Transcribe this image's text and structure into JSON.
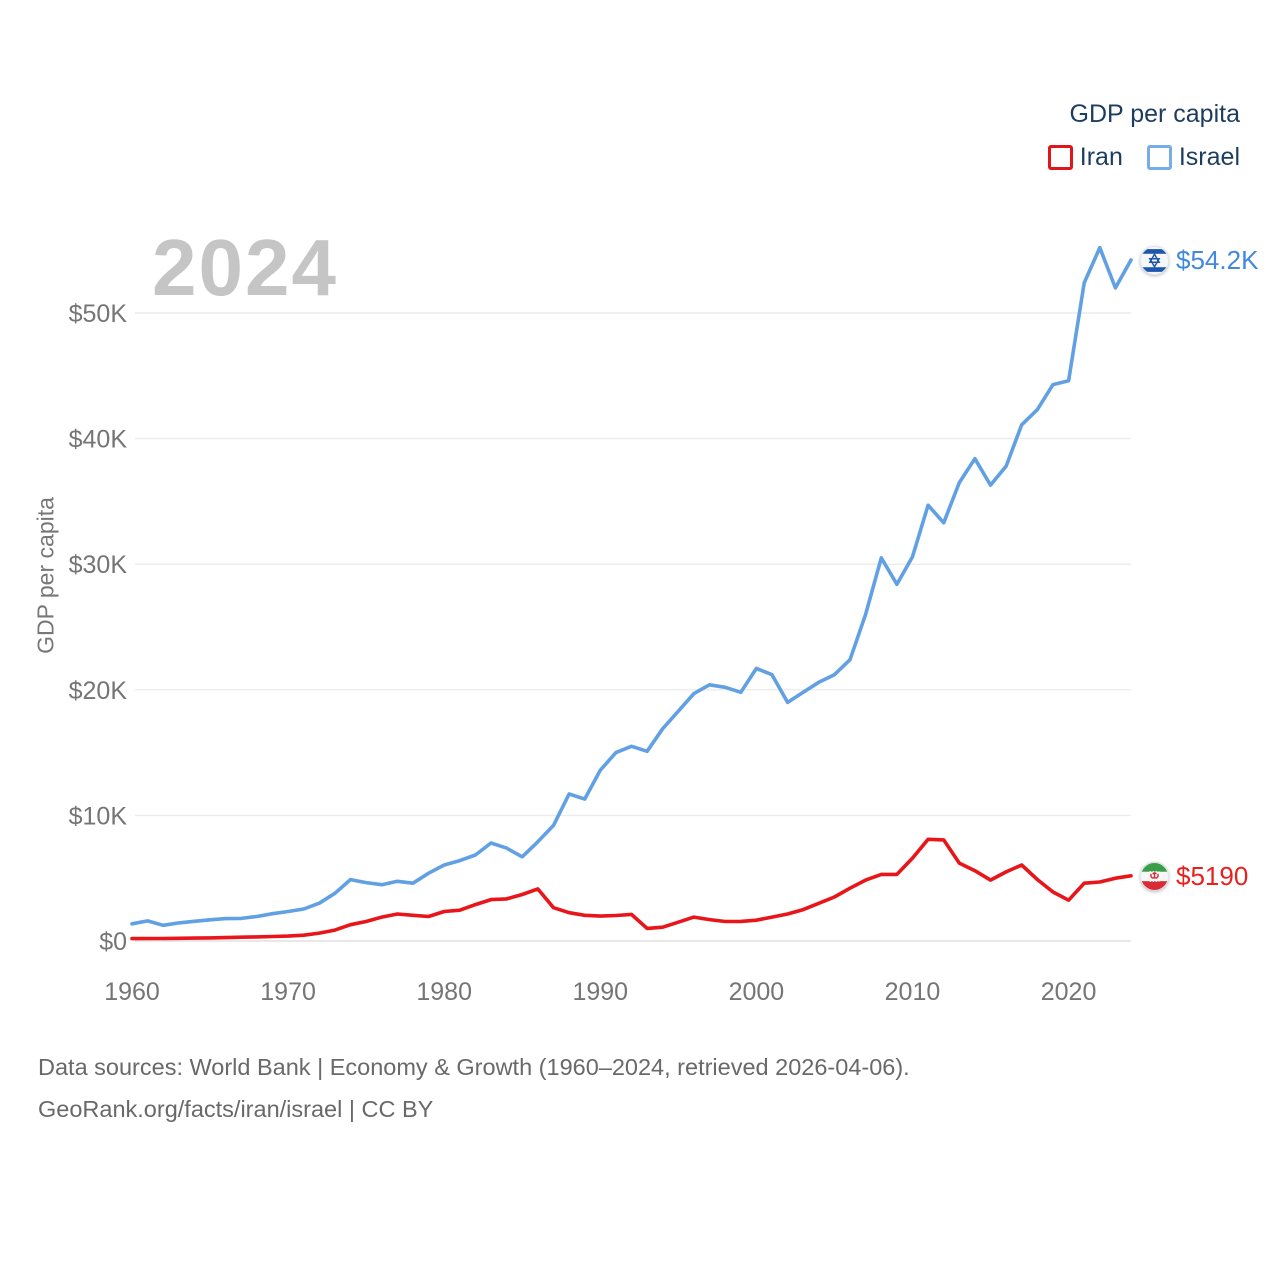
{
  "watermark_year": "2024",
  "legend": {
    "title": "GDP per capita",
    "items": [
      {
        "label": "Iran",
        "swatch_color": "#e0161a"
      },
      {
        "label": "Israel",
        "swatch_color": "#74ade8"
      }
    ]
  },
  "y_axis": {
    "title": "GDP per capita"
  },
  "end_labels": [
    {
      "series": "Israel",
      "text": "$54.2K",
      "color": "#4288dd",
      "value": 54220
    },
    {
      "series": "Iran",
      "text": "$5190",
      "color": "#e8201e",
      "value": 5190
    }
  ],
  "footer": {
    "line1": "Data sources: World Bank | Economy & Growth (1960–2024, retrieved 2026-04-06).",
    "line2": "GeoRank.org/facts/iran/israel | CC BY"
  },
  "chart_data": {
    "type": "line",
    "title": "GDP per capita",
    "xlabel": "",
    "ylabel": "GDP per capita",
    "x_range": [
      1960,
      2024
    ],
    "ylim": [
      0,
      55500
    ],
    "grid": "horizontal",
    "legend_position": "top-right",
    "x": [
      1960,
      1961,
      1962,
      1963,
      1964,
      1965,
      1966,
      1967,
      1968,
      1969,
      1970,
      1971,
      1972,
      1973,
      1974,
      1975,
      1976,
      1977,
      1978,
      1979,
      1980,
      1981,
      1982,
      1983,
      1984,
      1985,
      1986,
      1987,
      1988,
      1989,
      1990,
      1991,
      1992,
      1993,
      1994,
      1995,
      1996,
      1997,
      1998,
      1999,
      2000,
      2001,
      2002,
      2003,
      2004,
      2005,
      2006,
      2007,
      2008,
      2009,
      2010,
      2011,
      2012,
      2013,
      2014,
      2015,
      2016,
      2017,
      2018,
      2019,
      2020,
      2021,
      2022,
      2023,
      2024
    ],
    "series": [
      {
        "name": "Iran",
        "color": "#e8161b",
        "values": [
          190,
          200,
          200,
          215,
          230,
          250,
          270,
          300,
          330,
          360,
          390,
          460,
          630,
          870,
          1300,
          1550,
          1900,
          2150,
          2050,
          1950,
          2350,
          2450,
          2900,
          3300,
          3350,
          3700,
          4150,
          2650,
          2250,
          2050,
          1980,
          2030,
          2120,
          1000,
          1100,
          1500,
          1900,
          1700,
          1550,
          1560,
          1660,
          1900,
          2150,
          2500,
          3000,
          3500,
          4200,
          4850,
          5300,
          5300,
          6600,
          8100,
          8050,
          6200,
          5600,
          4850,
          5500,
          6050,
          4900,
          3900,
          3250,
          4600,
          4700,
          5000,
          5190
        ]
      },
      {
        "name": "Israel",
        "color": "#61a0e3",
        "values": [
          1370,
          1600,
          1250,
          1440,
          1570,
          1690,
          1780,
          1800,
          1950,
          2170,
          2350,
          2550,
          3010,
          3800,
          4890,
          4650,
          4480,
          4750,
          4600,
          5400,
          6050,
          6400,
          6850,
          7800,
          7400,
          6700,
          7900,
          9200,
          11700,
          11300,
          13600,
          15000,
          15500,
          15100,
          16900,
          18300,
          19700,
          20400,
          20200,
          19800,
          21700,
          21200,
          19000,
          19800,
          20600,
          21200,
          22400,
          26000,
          30500,
          28400,
          30600,
          34700,
          33300,
          36500,
          38400,
          36300,
          37800,
          41100,
          42300,
          44300,
          44600,
          52400,
          55200,
          52000,
          54220
        ]
      }
    ],
    "y_ticks": [
      {
        "value": 0,
        "label": "$0"
      },
      {
        "value": 10000,
        "label": "$10K"
      },
      {
        "value": 20000,
        "label": "$20K"
      },
      {
        "value": 30000,
        "label": "$30K"
      },
      {
        "value": 40000,
        "label": "$40K"
      },
      {
        "value": 50000,
        "label": "$50K"
      }
    ],
    "x_ticks": [
      1960,
      1970,
      1980,
      1990,
      2000,
      2010,
      2020
    ]
  }
}
